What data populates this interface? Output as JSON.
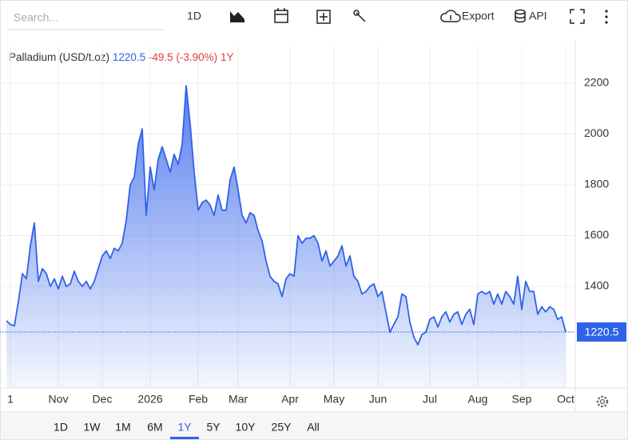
{
  "toolbar": {
    "search_placeholder": "Search...",
    "interval": "1D",
    "export": "Export",
    "api": "API"
  },
  "quote": {
    "change": "-49.5 (-3.90%)",
    "period": "1Y"
  },
  "ranges": [
    "1D",
    "1W",
    "1M",
    "6M",
    "1Y",
    "5Y",
    "10Y",
    "25Y",
    "All"
  ],
  "selected_range": "1Y",
  "chart_data": {
    "type": "area",
    "title": "Palladium (USD/t.oz)",
    "categories": [
      null,
      "1",
      null,
      null,
      null,
      null,
      null,
      null,
      null,
      null,
      null,
      null,
      null,
      "Nov",
      null,
      null,
      null,
      null,
      null,
      null,
      null,
      null,
      null,
      null,
      "Dec",
      null,
      null,
      null,
      null,
      null,
      null,
      null,
      null,
      null,
      null,
      null,
      "2026",
      null,
      null,
      null,
      null,
      null,
      null,
      null,
      null,
      null,
      null,
      null,
      "Feb",
      null,
      null,
      null,
      null,
      null,
      null,
      null,
      null,
      null,
      "Mar",
      null,
      null,
      null,
      null,
      null,
      null,
      null,
      null,
      null,
      null,
      null,
      null,
      "Apr",
      null,
      null,
      null,
      null,
      null,
      null,
      null,
      null,
      null,
      null,
      "May",
      null,
      null,
      null,
      null,
      null,
      null,
      null,
      null,
      null,
      null,
      "Jun",
      null,
      null,
      null,
      null,
      null,
      null,
      null,
      null,
      null,
      null,
      null,
      null,
      "Jul",
      null,
      null,
      null,
      null,
      null,
      null,
      null,
      null,
      null,
      null,
      null,
      "Aug",
      null,
      null,
      null,
      null,
      null,
      null,
      null,
      null,
      null,
      null,
      "Sep",
      null,
      null,
      null,
      null,
      null,
      null,
      null,
      null,
      null,
      null,
      "Oct"
    ],
    "series": [
      {
        "name": "Palladium",
        "color": "#2f62e8",
        "values": [
          1265,
          1250,
          1245,
          1340,
          1450,
          1430,
          1560,
          1650,
          1420,
          1470,
          1450,
          1400,
          1430,
          1390,
          1440,
          1400,
          1410,
          1460,
          1420,
          1400,
          1420,
          1390,
          1420,
          1470,
          1520,
          1540,
          1510,
          1550,
          1540,
          1570,
          1660,
          1800,
          1830,
          1960,
          2020,
          1680,
          1870,
          1780,
          1900,
          1950,
          1900,
          1850,
          1920,
          1880,
          1960,
          2190,
          2040,
          1850,
          1700,
          1730,
          1740,
          1720,
          1680,
          1760,
          1700,
          1700,
          1820,
          1870,
          1780,
          1680,
          1650,
          1690,
          1680,
          1620,
          1580,
          1500,
          1440,
          1420,
          1410,
          1360,
          1430,
          1450,
          1440,
          1600,
          1570,
          1590,
          1590,
          1600,
          1570,
          1500,
          1540,
          1480,
          1500,
          1520,
          1560,
          1480,
          1520,
          1440,
          1420,
          1370,
          1380,
          1400,
          1410,
          1360,
          1380,
          1300,
          1220,
          1250,
          1280,
          1370,
          1360,
          1260,
          1200,
          1170,
          1210,
          1220,
          1270,
          1280,
          1240,
          1280,
          1300,
          1260,
          1290,
          1300,
          1250,
          1290,
          1310,
          1250,
          1370,
          1380,
          1370,
          1380,
          1330,
          1370,
          1330,
          1380,
          1360,
          1330,
          1440,
          1310,
          1420,
          1380,
          1380,
          1290,
          1320,
          1300,
          1320,
          1310,
          1270,
          1280,
          1220.5
        ]
      }
    ],
    "ylim": [
      1000,
      2350
    ],
    "yticks": [
      1400,
      1600,
      1800,
      2000,
      2200
    ],
    "grid": true
  }
}
